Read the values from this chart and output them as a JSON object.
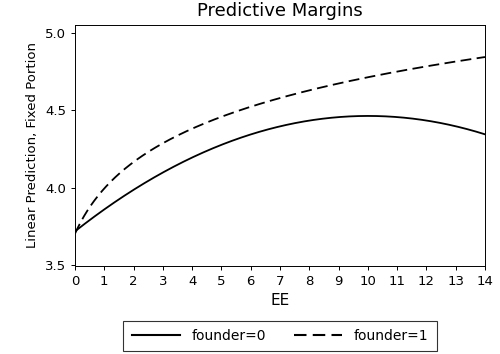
{
  "title": "Predictive Margins",
  "xlabel": "EE",
  "ylabel": "Linear Prediction, Fixed Portion",
  "xlim": [
    0,
    14
  ],
  "ylim": [
    3.5,
    5.05
  ],
  "xticks": [
    0,
    1,
    2,
    3,
    4,
    5,
    6,
    7,
    8,
    9,
    10,
    11,
    12,
    13,
    14
  ],
  "yticks": [
    3.5,
    4.0,
    4.5,
    5.0
  ],
  "line_color": "#000000",
  "founder0_a": 3.72,
  "founder0_b": 0.1485,
  "founder0_c": -0.00742,
  "founder1_a": 3.705,
  "founder1_b": 0.42,
  "legend_labels": [
    "founder=0",
    "founder=1"
  ],
  "figsize": [
    5.0,
    3.54
  ],
  "dpi": 100,
  "background_color": "#ffffff",
  "title_fontsize": 13
}
